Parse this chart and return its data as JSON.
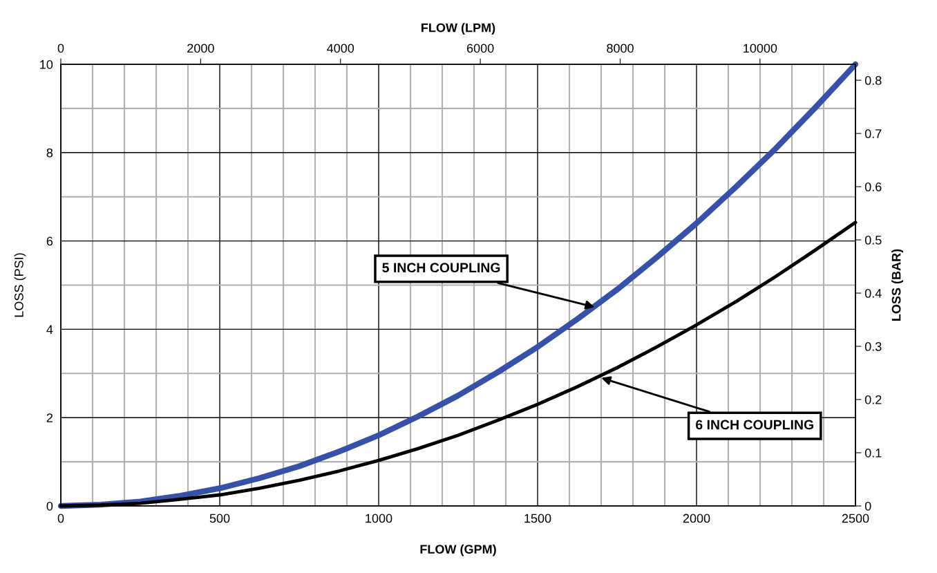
{
  "chart_data": {
    "type": "line",
    "xlabel": "FLOW (GPM)",
    "ylabel": "LOSS (PSI)",
    "y2label": "LOSS (BAR)",
    "x2label": "FLOW (LPM)",
    "x": [
      0,
      125,
      250,
      375,
      500,
      625,
      750,
      875,
      1000,
      1125,
      1250,
      1375,
      1500,
      1625,
      1750,
      1875,
      2000,
      2125,
      2250,
      2375,
      2500
    ],
    "series": [
      {
        "color": "#3552a8",
        "values": [
          0,
          0.03,
          0.1,
          0.23,
          0.4,
          0.63,
          0.9,
          1.23,
          1.6,
          2.03,
          2.5,
          3.03,
          3.6,
          4.23,
          4.9,
          5.63,
          6.4,
          7.23,
          8.1,
          9.03,
          10.0
        ]
      },
      {
        "color": "#000000",
        "values": [
          0,
          0.02,
          0.06,
          0.15,
          0.25,
          0.4,
          0.58,
          0.79,
          1.03,
          1.3,
          1.6,
          1.94,
          2.3,
          2.7,
          3.13,
          3.6,
          4.1,
          4.63,
          5.2,
          5.8,
          6.42
        ]
      }
    ],
    "xlim": [
      0,
      2500
    ],
    "xticks": [
      0,
      {
        "value": 100,
        "label": null
      },
      {
        "value": 200,
        "label": null
      },
      {
        "value": 300,
        "label": null
      },
      {
        "value": 400,
        "label": null
      },
      500,
      {
        "value": 600,
        "label": null
      },
      {
        "value": 700,
        "label": null
      },
      {
        "value": 800,
        "label": null
      },
      {
        "value": 900,
        "label": null
      },
      1000,
      {
        "value": 1100,
        "label": null
      },
      {
        "value": 1200,
        "label": null
      },
      {
        "value": 1300,
        "label": null
      },
      {
        "value": 1400,
        "label": null
      },
      1500,
      {
        "value": 1600,
        "label": null
      },
      {
        "value": 1700,
        "label": null
      },
      {
        "value": 1800,
        "label": null
      },
      {
        "value": 1900,
        "label": null
      },
      2000,
      {
        "value": 2100,
        "label": null
      },
      {
        "value": 2200,
        "label": null
      },
      {
        "value": 2300,
        "label": null
      },
      {
        "value": 2400,
        "label": null
      },
      2500
    ],
    "ylim": [
      0,
      10
    ],
    "yticks": [
      0,
      {
        "value": 1,
        "label": null
      },
      2,
      {
        "value": 3,
        "label": null
      },
      4,
      {
        "value": 5,
        "label": null
      },
      6,
      {
        "value": 7,
        "label": null
      },
      8,
      {
        "value": 9,
        "label": null
      },
      10
    ],
    "y2lim": [
      0,
      0.83
    ],
    "y2ticks": [
      0,
      0.1,
      0.2,
      0.3,
      0.4,
      0.5,
      0.6,
      0.7,
      0.8
    ],
    "x2lim": [
      0,
      11365
    ],
    "x2ticks": [
      0,
      2000,
      4000,
      6000,
      8000,
      10000
    ],
    "grid": true,
    "annotations": [
      {
        "text": "5 INCH COUPLING",
        "x": 1680,
        "y": 4.5
      },
      {
        "text": "6 INCH COUPLING",
        "x": 1700,
        "y": 2.9
      }
    ]
  }
}
